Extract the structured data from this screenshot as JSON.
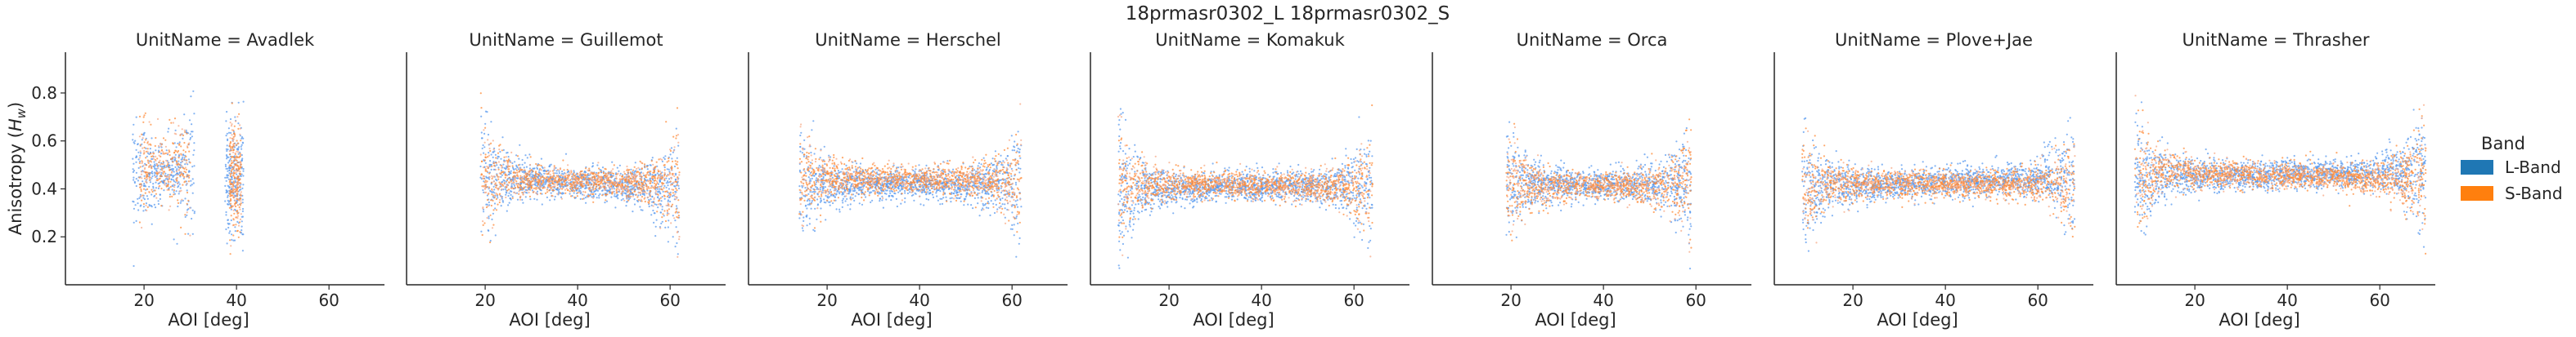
{
  "figure": {
    "suptitle": "18prmasr0302_L 18prmasr0302_S"
  },
  "legend": {
    "title": "Band",
    "placement": "right",
    "items": [
      {
        "label": "L-Band",
        "color": "#1f77b4"
      },
      {
        "label": "S-Band",
        "color": "#ff7f0e"
      }
    ]
  },
  "colors": {
    "l_band_points": "#5b9bef",
    "s_band_points": "#ff8c3a",
    "s_band_light": "#f7a987",
    "axis": "#262626"
  },
  "chart_data": [
    {
      "type": "scatter",
      "title": "UnitName = Avadlek",
      "xlabel": "AOI [deg]",
      "ylabel": "Anisotropy (H_w)",
      "xlim": [
        3,
        72
      ],
      "ylim": [
        0,
        0.97
      ],
      "xticks": [
        20,
        40,
        60
      ],
      "yticks": [
        0.2,
        0.4,
        0.6,
        0.8
      ],
      "grid": false,
      "series": [
        {
          "name": "L-Band",
          "segments": [
            [
              17.5,
              31,
              0.47,
              0.48
            ],
            [
              37.5,
              41.5,
              0.45,
              0.45
            ]
          ]
        },
        {
          "name": "S-Band",
          "segments": [
            [
              19,
              30,
              0.49,
              0.49
            ],
            [
              38.5,
              41,
              0.46,
              0.46
            ]
          ]
        }
      ]
    },
    {
      "type": "scatter",
      "title": "UnitName = Guillemot",
      "xlabel": "AOI [deg]",
      "ylabel": "",
      "xlim": [
        3,
        72
      ],
      "ylim": [
        0,
        0.97
      ],
      "xticks": [
        20,
        40,
        60
      ],
      "yticks": [
        0.2,
        0.4,
        0.6,
        0.8
      ],
      "grid": false,
      "series": [
        {
          "name": "L-Band",
          "segments": [
            [
              19,
              62,
              0.45,
              0.4
            ]
          ]
        },
        {
          "name": "S-Band",
          "segments": [
            [
              19,
              62,
              0.44,
              0.42
            ]
          ]
        }
      ]
    },
    {
      "type": "scatter",
      "title": "UnitName = Herschel",
      "xlabel": "AOI [deg]",
      "ylabel": "",
      "xlim": [
        3,
        72
      ],
      "ylim": [
        0,
        0.97
      ],
      "xticks": [
        20,
        40,
        60
      ],
      "yticks": [
        0.2,
        0.4,
        0.6,
        0.8
      ],
      "grid": false,
      "series": [
        {
          "name": "L-Band",
          "segments": [
            [
              14,
              62,
              0.42,
              0.42
            ]
          ]
        },
        {
          "name": "S-Band",
          "segments": [
            [
              14,
              62,
              0.45,
              0.43
            ]
          ]
        }
      ]
    },
    {
      "type": "scatter",
      "title": "UnitName = Komakuk",
      "xlabel": "AOI [deg]",
      "ylabel": "",
      "xlim": [
        3,
        72
      ],
      "ylim": [
        0,
        0.97
      ],
      "xticks": [
        20,
        40,
        60
      ],
      "yticks": [
        0.2,
        0.4,
        0.6,
        0.8
      ],
      "grid": false,
      "series": [
        {
          "name": "L-Band",
          "segments": [
            [
              9,
              64,
              0.4,
              0.42
            ]
          ]
        },
        {
          "name": "S-Band",
          "segments": [
            [
              9,
              64,
              0.42,
              0.41
            ]
          ]
        }
      ]
    },
    {
      "type": "scatter",
      "title": "UnitName = Orca",
      "xlabel": "AOI [deg]",
      "ylabel": "",
      "xlim": [
        3,
        72
      ],
      "ylim": [
        0,
        0.97
      ],
      "xticks": [
        20,
        40,
        60
      ],
      "yticks": [
        0.2,
        0.4,
        0.6,
        0.8
      ],
      "grid": false,
      "series": [
        {
          "name": "L-Band",
          "segments": [
            [
              19,
              59,
              0.42,
              0.42
            ]
          ]
        },
        {
          "name": "S-Band",
          "segments": [
            [
              19,
              59,
              0.41,
              0.41
            ]
          ]
        }
      ]
    },
    {
      "type": "scatter",
      "title": "UnitName = Plove+Jae",
      "xlabel": "AOI [deg]",
      "ylabel": "",
      "xlim": [
        3,
        72
      ],
      "ylim": [
        0,
        0.97
      ],
      "xticks": [
        20,
        40,
        60
      ],
      "yticks": [
        0.2,
        0.4,
        0.6,
        0.8
      ],
      "grid": false,
      "series": [
        {
          "name": "L-Band",
          "segments": [
            [
              9,
              68,
              0.4,
              0.45
            ]
          ]
        },
        {
          "name": "S-Band",
          "segments": [
            [
              9,
              68,
              0.42,
              0.42
            ]
          ]
        }
      ]
    },
    {
      "type": "scatter",
      "title": "UnitName = Thrasher",
      "xlabel": "AOI [deg]",
      "ylabel": "",
      "xlim": [
        3,
        72
      ],
      "ylim": [
        0,
        0.97
      ],
      "xticks": [
        20,
        40,
        60
      ],
      "yticks": [
        0.2,
        0.4,
        0.6,
        0.8
      ],
      "grid": false,
      "series": [
        {
          "name": "L-Band",
          "segments": [
            [
              7,
              70,
              0.45,
              0.47
            ]
          ]
        },
        {
          "name": "S-Band",
          "segments": [
            [
              7,
              70,
              0.47,
              0.44
            ]
          ]
        }
      ]
    }
  ]
}
